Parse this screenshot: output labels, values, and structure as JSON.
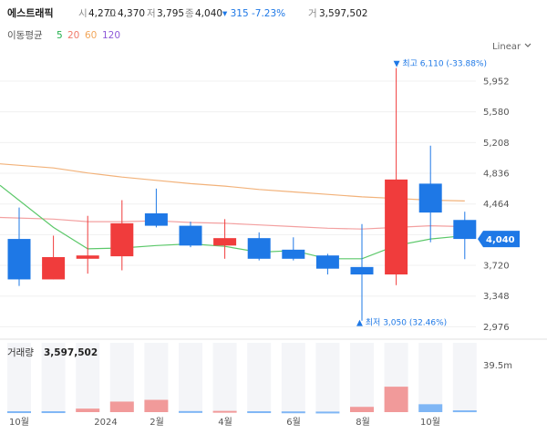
{
  "header": {
    "name": "에스트래픽",
    "open_label": "시",
    "open": "4,270",
    "high_label": "고",
    "high": "4,370",
    "low_label": "저",
    "low": "3,795",
    "close_label": "종",
    "close": "4,040",
    "change": "▾ 315 -7.23%",
    "volume_label": "거",
    "volume": "3,597,502"
  },
  "ma_legend": {
    "label": "이동평균",
    "periods": [
      {
        "text": "5",
        "color": "#22b14c"
      },
      {
        "text": "20",
        "color": "#f07a6a"
      },
      {
        "text": "60",
        "color": "#f2a65a"
      },
      {
        "text": "120",
        "color": "#8e5ad8"
      }
    ]
  },
  "scale_label": "Linear",
  "colors": {
    "up": "#f03c3c",
    "down": "#1e78e6",
    "price_tag": "#1e78e6"
  },
  "chart_data": {
    "type": "candlestick",
    "yticks": [
      "5,952",
      "5,580",
      "5,208",
      "4,836",
      "4,464",
      "4,092",
      "3,720",
      "3,348",
      "2,976"
    ],
    "ylim": [
      2870,
      6250
    ],
    "xticks": [
      "10월",
      "2024",
      "2월",
      "4월",
      "6월",
      "8월",
      "10월"
    ],
    "candles": [
      {
        "open": 4040,
        "high": 4420,
        "low": 3470,
        "close": 3550,
        "dir": "down"
      },
      {
        "open": 3550,
        "high": 4080,
        "low": 3550,
        "close": 3820,
        "dir": "up"
      },
      {
        "open": 3800,
        "high": 4320,
        "low": 3620,
        "close": 3840,
        "dir": "up"
      },
      {
        "open": 3830,
        "high": 4510,
        "low": 3660,
        "close": 4230,
        "dir": "up"
      },
      {
        "open": 4350,
        "high": 4650,
        "low": 4180,
        "close": 4200,
        "dir": "down"
      },
      {
        "open": 4200,
        "high": 4250,
        "low": 3940,
        "close": 3960,
        "dir": "down"
      },
      {
        "open": 3960,
        "high": 4280,
        "low": 3800,
        "close": 4050,
        "dir": "up"
      },
      {
        "open": 4050,
        "high": 4120,
        "low": 3780,
        "close": 3800,
        "dir": "down"
      },
      {
        "open": 3910,
        "high": 4060,
        "low": 3780,
        "close": 3800,
        "dir": "down"
      },
      {
        "open": 3840,
        "high": 3860,
        "low": 3610,
        "close": 3680,
        "dir": "down"
      },
      {
        "open": 3700,
        "high": 4220,
        "low": 3050,
        "close": 3610,
        "dir": "down"
      },
      {
        "open": 3610,
        "high": 6110,
        "low": 3480,
        "close": 4760,
        "dir": "up"
      },
      {
        "open": 4710,
        "high": 5170,
        "low": 4000,
        "close": 4360,
        "dir": "down"
      },
      {
        "open": 4270,
        "high": 4370,
        "low": 3795,
        "close": 4040,
        "dir": "down"
      }
    ],
    "ma5": [
      4690,
      4180,
      3920,
      3930,
      3960,
      3980,
      3950,
      3880,
      3900,
      3800,
      3800,
      3960,
      4040,
      4080
    ],
    "ma20": [
      4300,
      4280,
      4250,
      4250,
      4260,
      4240,
      4230,
      4210,
      4190,
      4170,
      4160,
      4180,
      4200,
      4190
    ],
    "ma60": [
      4950,
      4900,
      4840,
      4790,
      4750,
      4710,
      4680,
      4640,
      4610,
      4580,
      4550,
      4530,
      4510,
      4500
    ],
    "annotations": {
      "high": "▼ 최고 6,110 (-33.88%)",
      "low": "▲ 최저 3,050 (32.46%)"
    },
    "current_price_tag": "4,040",
    "volume_panel": {
      "label": "거래량",
      "value": "3,597,502",
      "max_label": "39.5m",
      "max": 39.5,
      "values": [
        0.5,
        0.5,
        2.0,
        6.0,
        7.0,
        0.6,
        0.7,
        0.5,
        0.4,
        0.3,
        3.0,
        14.5,
        4.5,
        1.0
      ],
      "colors": [
        "down",
        "down",
        "up",
        "up",
        "up",
        "down",
        "up",
        "down",
        "down",
        "down",
        "up",
        "up",
        "down",
        "down"
      ]
    }
  }
}
